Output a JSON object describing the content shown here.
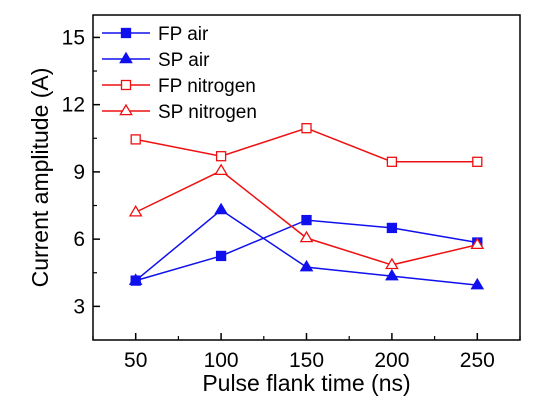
{
  "chart_data": {
    "type": "line",
    "title": "",
    "xlabel": "Pulse flank time (ns)",
    "ylabel": "Current amplitude (A)",
    "x": [
      50,
      100,
      150,
      200,
      250
    ],
    "xlim": [
      25,
      275
    ],
    "ylim": [
      1.5,
      16
    ],
    "xticks": [
      50,
      100,
      150,
      200,
      250
    ],
    "yticks": [
      3,
      6,
      9,
      12,
      15
    ],
    "grid": false,
    "legend_position": "top-left",
    "series": [
      {
        "name": "FP air",
        "color": "#1010ee",
        "marker": "square",
        "filled": true,
        "values": [
          4.15,
          5.25,
          6.85,
          6.5,
          5.85
        ]
      },
      {
        "name": "SP air",
        "color": "#1010ee",
        "marker": "triangle",
        "filled": true,
        "values": [
          4.15,
          7.3,
          4.75,
          4.35,
          3.95
        ]
      },
      {
        "name": "FP nitrogen",
        "color": "#ee1010",
        "marker": "square",
        "filled": false,
        "values": [
          10.45,
          9.7,
          10.95,
          9.45,
          9.45
        ]
      },
      {
        "name": "SP nitrogen",
        "color": "#ee1010",
        "marker": "triangle",
        "filled": false,
        "values": [
          7.2,
          9.05,
          6.05,
          4.85,
          5.75
        ]
      }
    ]
  }
}
